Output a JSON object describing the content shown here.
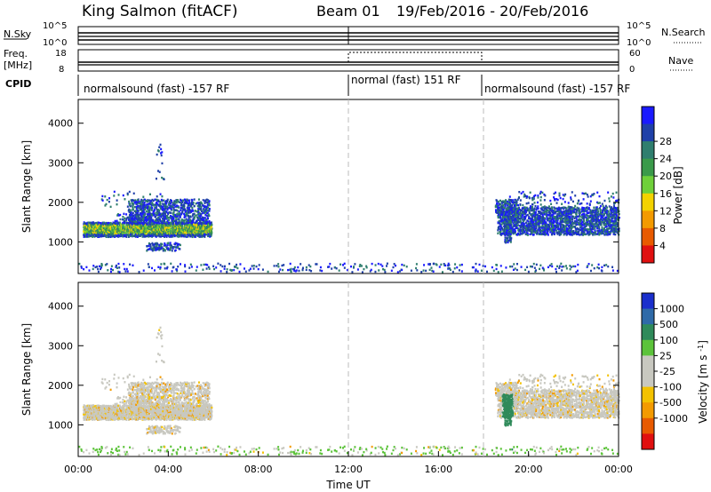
{
  "header": {
    "station": "King Salmon (fitACF)",
    "beam": "Beam 01",
    "date_range": "19/Feb/2016 - 20/Feb/2016"
  },
  "panels": {
    "nsky": {
      "left_label": "N.Sky",
      "left_ticks": [
        "10^5",
        "10^0"
      ],
      "right_ticks": [
        "10^5",
        "10^0"
      ],
      "right_label": "N.Search"
    },
    "freq": {
      "left_label_line1": "Freq.",
      "left_label_line2": "[MHz]",
      "left_ticks": [
        "18",
        "8"
      ],
      "right_ticks": [
        "60",
        "0"
      ],
      "right_label": "Nave"
    },
    "cpid": {
      "label": "CPID",
      "segments": [
        {
          "label": "normalsound (fast) -157 RF",
          "start_h": 0,
          "end_h": 12
        },
        {
          "label": "normal (fast) 151 RF",
          "start_h": 12,
          "end_h": 18
        },
        {
          "label": "normalsound (fast) -157 RF",
          "start_h": 18,
          "end_h": 24
        }
      ]
    }
  },
  "chart_data": [
    {
      "type": "heatmap",
      "name": "power",
      "ylabel": "Slant Range [km]",
      "ylim": [
        200,
        4600
      ],
      "yticks": [
        "1000",
        "2000",
        "3000",
        "4000"
      ],
      "colorbar_label": "Power [dB]",
      "colorbar_ticks": [
        "4",
        "8",
        "12",
        "16",
        "20",
        "24",
        "28"
      ],
      "colorbar_colors": [
        "#1a1aff",
        "#1f40a8",
        "#2f7e6e",
        "#3a9a4a",
        "#6fd03a",
        "#f3d200",
        "#f39a00",
        "#e85a00",
        "#e01010"
      ]
    },
    {
      "type": "heatmap",
      "name": "velocity",
      "ylabel": "Slant Range [km]",
      "ylim": [
        200,
        4600
      ],
      "yticks": [
        "1000",
        "2000",
        "3000",
        "4000"
      ],
      "colorbar_label": "Velocity [m s^-1]",
      "colorbar_ticks": [
        "1000",
        "500",
        "100",
        "25",
        "-25",
        "-100",
        "-500",
        "-1000"
      ],
      "colorbar_colors": [
        "#1a2fcc",
        "#2f6aa8",
        "#2f8a5a",
        "#5cc33a",
        "#c8c8c0",
        "#c8c8c0",
        "#f3c200",
        "#f39a00",
        "#e85a00",
        "#e01010"
      ]
    }
  ],
  "xaxis": {
    "label": "Time UT",
    "xlim_hours": [
      0,
      24
    ],
    "ticks": [
      "00:00",
      "04:00",
      "08:00",
      "12:00",
      "16:00",
      "20:00",
      "00:00"
    ],
    "dashed_lines_hours": [
      12,
      18
    ]
  }
}
